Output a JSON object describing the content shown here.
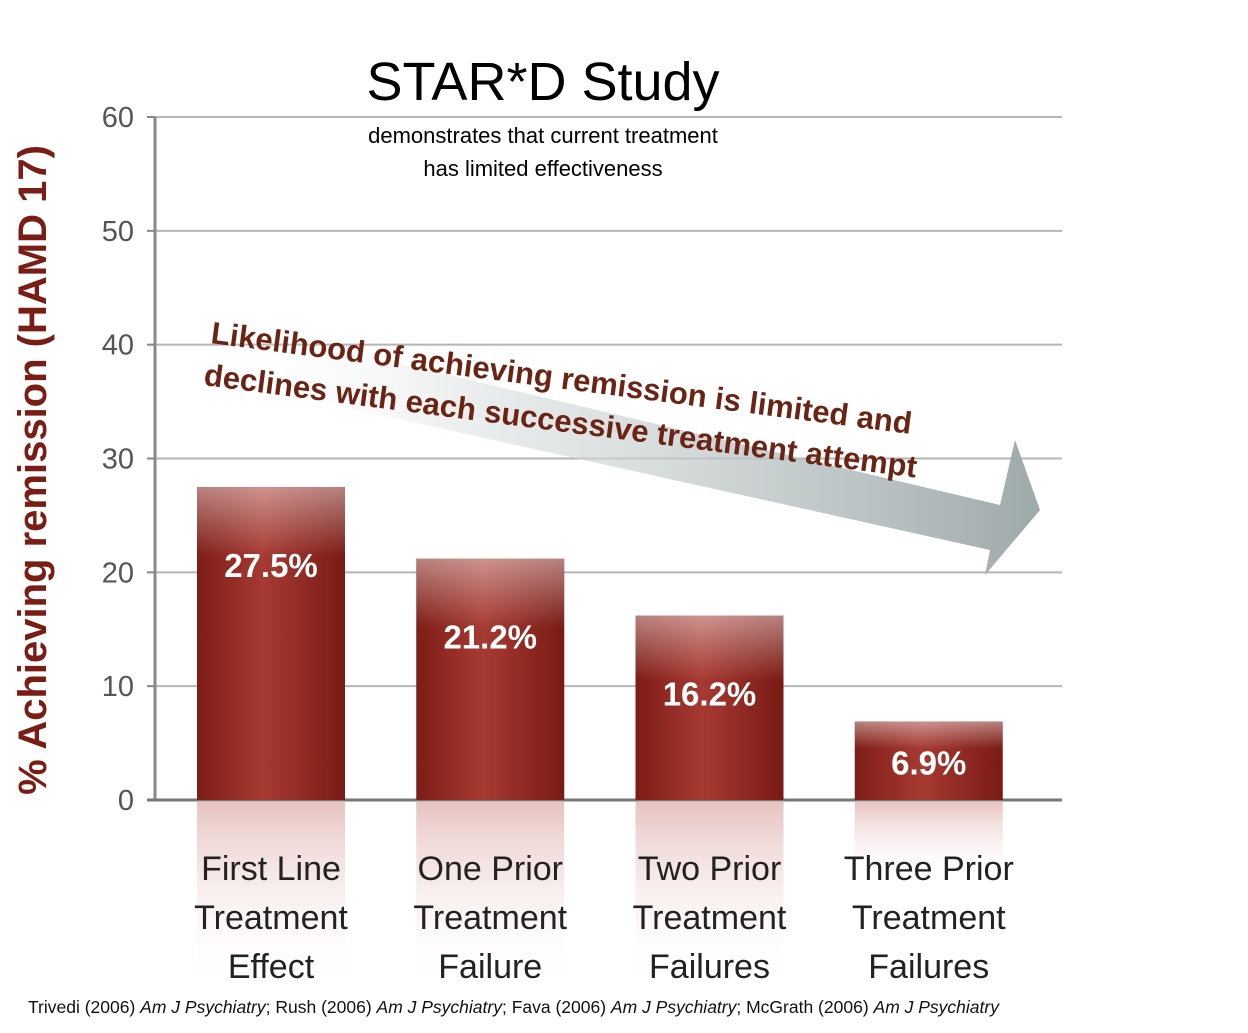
{
  "chart_data": {
    "type": "bar",
    "title": "STAR*D Study",
    "subtitle": [
      "demonstrates that current treatment",
      "has limited effectiveness"
    ],
    "ylabel": "% Achieving remission (HAMD 17)",
    "xlabel": "",
    "ylim": [
      0,
      60
    ],
    "yticks": [
      0,
      10,
      20,
      30,
      40,
      50,
      60
    ],
    "grid": true,
    "categories": [
      [
        "First Line",
        "Treatment",
        "Effect"
      ],
      [
        "One Prior",
        "Treatment",
        "Failure"
      ],
      [
        "Two Prior",
        "Treatment",
        "Failures"
      ],
      [
        "Three Prior",
        "Treatment",
        "Failures"
      ]
    ],
    "values": [
      27.5,
      21.2,
      16.2,
      6.9
    ],
    "data_labels": [
      "27.5%",
      "21.2%",
      "16.2%",
      "6.9%"
    ],
    "annotation": {
      "lines": [
        "Likelihood of achieving remission is limited and",
        "declines with each successive treatment attempt"
      ],
      "shape": "arrow pointing right-down"
    },
    "bar_color": "#9c2a22"
  },
  "source": [
    {
      "text": "Trivedi (2006) ",
      "italic": false
    },
    {
      "text": "Am J Psychiatry",
      "italic": true
    },
    {
      "text": "; Rush (2006) ",
      "italic": false
    },
    {
      "text": "Am J Psychiatry",
      "italic": true
    },
    {
      "text": "; Fava  (2006) ",
      "italic": false
    },
    {
      "text": "Am J Psychiatry",
      "italic": true
    },
    {
      "text": "; McGrath (2006) ",
      "italic": false
    },
    {
      "text": "Am J Psychiatry",
      "italic": true
    }
  ]
}
